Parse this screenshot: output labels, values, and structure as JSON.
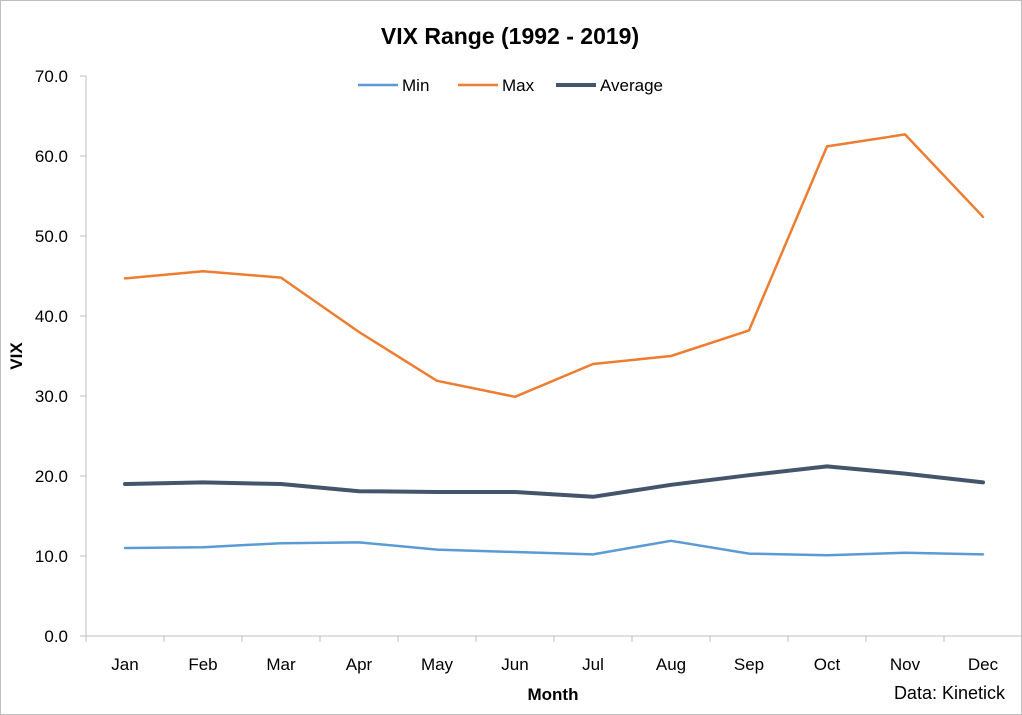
{
  "chart_data": {
    "type": "line",
    "title": "VIX Range (1992 - 2019)",
    "xlabel": "Month",
    "ylabel": "VIX",
    "categories": [
      "Jan",
      "Feb",
      "Mar",
      "Apr",
      "May",
      "Jun",
      "Jul",
      "Aug",
      "Sep",
      "Oct",
      "Nov",
      "Dec"
    ],
    "ylim": [
      0,
      70
    ],
    "yticks": [
      "0.0",
      "10.0",
      "20.0",
      "30.0",
      "40.0",
      "50.0",
      "60.0",
      "70.0"
    ],
    "grid": false,
    "legend_position": "top",
    "series": [
      {
        "name": "Min",
        "color": "#5b9bd5",
        "values": [
          11.0,
          11.1,
          11.6,
          11.7,
          10.8,
          10.5,
          10.2,
          11.9,
          10.3,
          10.1,
          10.4,
          10.2
        ]
      },
      {
        "name": "Max",
        "color": "#ed7d31",
        "values": [
          44.7,
          45.6,
          44.8,
          38.0,
          31.9,
          29.9,
          34.0,
          35.0,
          38.2,
          61.2,
          62.7,
          52.4
        ]
      },
      {
        "name": "Average",
        "color": "#44546a",
        "values": [
          19.0,
          19.2,
          19.0,
          18.1,
          18.0,
          18.0,
          17.4,
          18.9,
          20.1,
          21.2,
          20.3,
          19.2
        ]
      }
    ],
    "source": "Data: Kinetick"
  }
}
